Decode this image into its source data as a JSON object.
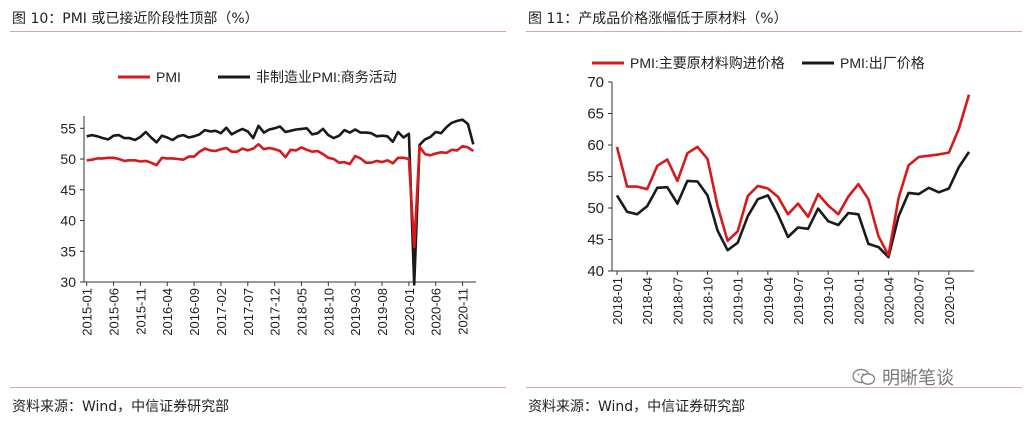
{
  "left_panel": {
    "figure_title": "图 10：PMI 或已接近阶段性顶部（%）",
    "source": "资料来源：Wind，中信证券研究部"
  },
  "right_panel": {
    "figure_title": "图 11：产成品价格涨幅低于原材料（%）",
    "source": "资料来源：Wind，中信证券研究部"
  },
  "watermark": {
    "text": "明晰笔谈",
    "icon": "wechat-icon"
  },
  "chart_data": [
    {
      "type": "line",
      "title": "图 10：PMI 或已接近阶段性顶部（%）",
      "xlabel": "",
      "ylabel": "",
      "ylim": [
        30,
        57
      ],
      "yticks": [
        30,
        35,
        40,
        45,
        50,
        55
      ],
      "x_start": "2015-01",
      "x_ticks": [
        "2015-01",
        "2015-06",
        "2015-11",
        "2016-04",
        "2016-09",
        "2017-02",
        "2017-07",
        "2017-12",
        "2018-05",
        "2018-10",
        "2019-03",
        "2019-08",
        "2020-01",
        "2020-06",
        "2020-11"
      ],
      "legend": "top-left",
      "series": [
        {
          "name": "PMI",
          "color": "#d7191c",
          "values": [
            49.8,
            49.9,
            50.1,
            50.1,
            50.2,
            50.2,
            50.0,
            49.7,
            49.8,
            49.8,
            49.6,
            49.7,
            49.4,
            49.0,
            50.2,
            50.1,
            50.1,
            50.0,
            49.9,
            50.4,
            50.4,
            51.2,
            51.7,
            51.4,
            51.3,
            51.6,
            51.8,
            51.2,
            51.2,
            51.7,
            51.4,
            51.7,
            52.4,
            51.6,
            51.8,
            51.6,
            51.3,
            50.3,
            51.5,
            51.4,
            51.9,
            51.5,
            51.2,
            51.3,
            50.8,
            50.2,
            50.0,
            49.4,
            49.5,
            49.2,
            50.5,
            50.1,
            49.4,
            49.4,
            49.7,
            49.5,
            49.8,
            49.3,
            50.2,
            50.2,
            50.0,
            35.7,
            52.0,
            50.8,
            50.6,
            50.9,
            51.1,
            51.0,
            51.5,
            51.4,
            52.1,
            51.9,
            51.3
          ]
        },
        {
          "name": "非制造业PMI:商务活动",
          "color": "#1a1a1a",
          "values": [
            53.7,
            53.9,
            53.7,
            53.4,
            53.2,
            53.8,
            53.9,
            53.4,
            53.4,
            53.1,
            53.6,
            54.4,
            53.5,
            52.7,
            53.8,
            53.5,
            53.1,
            53.7,
            53.9,
            53.5,
            53.7,
            54.0,
            54.7,
            54.5,
            54.6,
            54.2,
            55.1,
            54.0,
            54.5,
            54.9,
            54.5,
            53.4,
            55.4,
            54.3,
            54.8,
            55.0,
            55.3,
            54.4,
            54.6,
            54.8,
            54.9,
            55.0,
            54.0,
            54.2,
            54.9,
            53.9,
            53.4,
            53.8,
            54.7,
            54.3,
            54.8,
            54.3,
            54.3,
            54.2,
            53.7,
            53.8,
            53.7,
            52.8,
            54.4,
            53.5,
            54.1,
            29.6,
            52.3,
            53.2,
            53.6,
            54.4,
            54.2,
            55.2,
            55.9,
            56.2,
            56.4,
            55.7,
            52.4
          ]
        }
      ]
    },
    {
      "type": "line",
      "title": "图 11：产成品价格涨幅低于原材料（%）",
      "xlabel": "",
      "ylabel": "",
      "ylim": [
        40,
        70
      ],
      "yticks": [
        40,
        45,
        50,
        55,
        60,
        65,
        70
      ],
      "x_start": "2018-01",
      "x_ticks": [
        "2018-01",
        "2018-04",
        "2018-07",
        "2018-10",
        "2019-01",
        "2019-04",
        "2019-07",
        "2019-10",
        "2020-01",
        "2020-04",
        "2020-07",
        "2020-10"
      ],
      "legend": "top-left",
      "series": [
        {
          "name": "PMI:主要原材料购进价格",
          "color": "#d7191c",
          "values": [
            59.7,
            53.4,
            53.4,
            53.0,
            56.7,
            57.7,
            54.3,
            58.7,
            59.7,
            57.8,
            50.3,
            44.8,
            46.3,
            51.9,
            53.5,
            53.1,
            51.8,
            49.0,
            50.7,
            48.6,
            52.2,
            50.4,
            49.0,
            51.8,
            53.8,
            51.4,
            45.5,
            42.5,
            51.6,
            56.8,
            58.1,
            58.3,
            58.5,
            58.8,
            62.6,
            68.0
          ]
        },
        {
          "name": "PMI:出厂价格",
          "color": "#1a1a1a",
          "values": [
            52.0,
            49.4,
            49.0,
            50.3,
            53.2,
            53.3,
            50.7,
            54.3,
            54.2,
            52.0,
            46.4,
            43.3,
            44.5,
            48.7,
            51.4,
            52.0,
            49.0,
            45.4,
            46.9,
            46.7,
            49.9,
            47.9,
            47.3,
            49.2,
            49.0,
            44.3,
            43.8,
            42.2,
            48.7,
            52.4,
            52.2,
            53.2,
            52.5,
            53.1,
            56.5,
            58.9
          ]
        }
      ]
    }
  ]
}
